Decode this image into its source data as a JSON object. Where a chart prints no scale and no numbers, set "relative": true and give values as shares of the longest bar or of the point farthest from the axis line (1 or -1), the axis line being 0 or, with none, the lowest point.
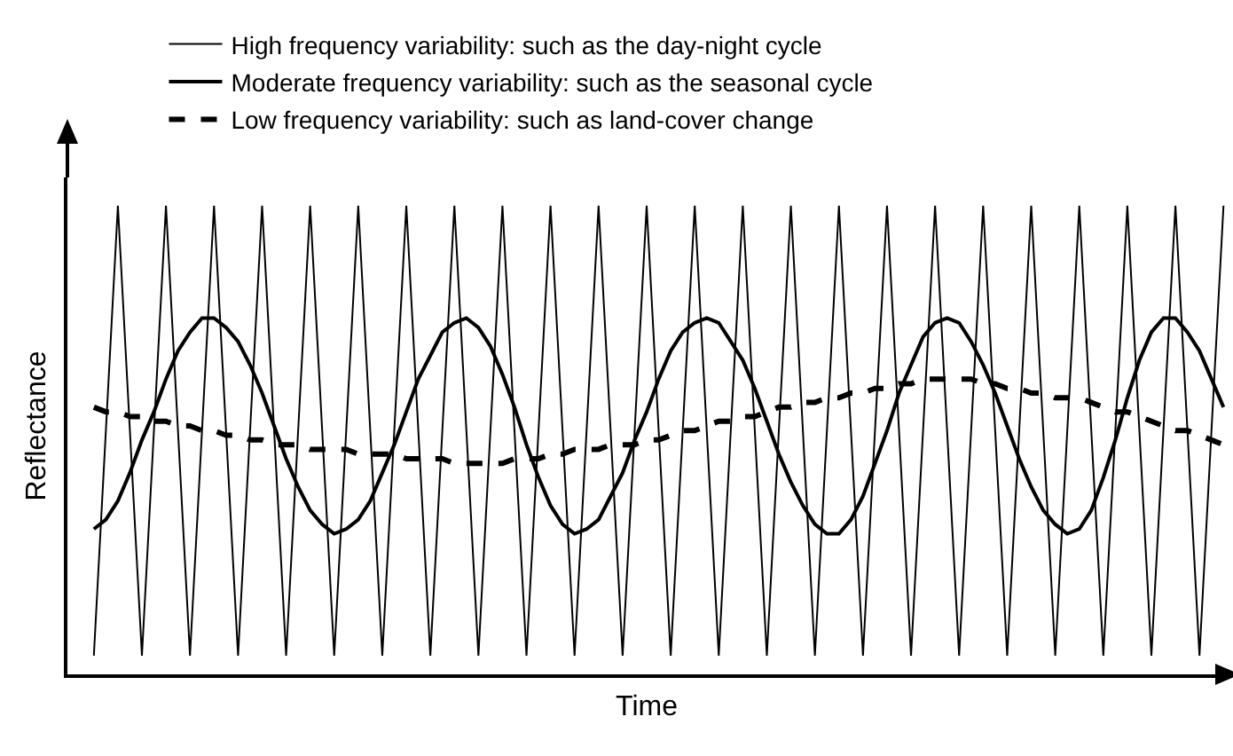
{
  "chart_data": {
    "type": "line",
    "relative": true,
    "xlabel": "Time",
    "ylabel": "Reflectance",
    "legend": "top",
    "categories": [
      null,
      null,
      null,
      null,
      null,
      null,
      null,
      null,
      null,
      null,
      null,
      null,
      null,
      null,
      null,
      null,
      null,
      null,
      null,
      null,
      null,
      null,
      null,
      null,
      null,
      null,
      null,
      null,
      null,
      null,
      null,
      null,
      null,
      null,
      null,
      null,
      null,
      null,
      null,
      null,
      null,
      null,
      null,
      null,
      null,
      null,
      null,
      null,
      null,
      null,
      null,
      null,
      null,
      null,
      null,
      null,
      null,
      null,
      null,
      null,
      null,
      null,
      null,
      null,
      null,
      null,
      null,
      null,
      null,
      null,
      null,
      null,
      null,
      null,
      null,
      null,
      null,
      null,
      null,
      null,
      null,
      null,
      null,
      null,
      null,
      null,
      null,
      null,
      null,
      null,
      null,
      null,
      null,
      null,
      null
    ],
    "series": [
      {
        "name": "High frequency variability: such as the day-night cycle",
        "color": "#000000",
        "line_style": "solid",
        "values": [
          0.04,
          0.52,
          1,
          0.52,
          0.04,
          0.52,
          1,
          0.52,
          0.04,
          0.52,
          1,
          0.52,
          0.04,
          0.52,
          1,
          0.52,
          0.04,
          0.52,
          1,
          0.52,
          0.04,
          0.52,
          1,
          0.52,
          0.04,
          0.52,
          1,
          0.52,
          0.04,
          0.52,
          1,
          0.52,
          0.04,
          0.52,
          1,
          0.52,
          0.04,
          0.52,
          1,
          0.52,
          0.04,
          0.52,
          1,
          0.52,
          0.04,
          0.52,
          1,
          0.52,
          0.04,
          0.52,
          1,
          0.52,
          0.04,
          0.52,
          1,
          0.52,
          0.04,
          0.52,
          1,
          0.52,
          0.04,
          0.52,
          1,
          0.52,
          0.04,
          0.52,
          1,
          0.52,
          0.04,
          0.52,
          1,
          0.52,
          0.04,
          0.52,
          1,
          0.52,
          0.04,
          0.52,
          1,
          0.52,
          0.04,
          0.52,
          1,
          0.52,
          0.04,
          0.52,
          1,
          0.52,
          0.04,
          0.52,
          1,
          0.52,
          0.04,
          0.52,
          1
        ]
      },
      {
        "name": "Moderate frequency variability: such as the seasonal cycle",
        "color": "#000000",
        "line_style": "solid",
        "values": [
          0.31,
          0.33,
          0.37,
          0.43,
          0.5,
          0.56,
          0.63,
          0.69,
          0.73,
          0.76,
          0.76,
          0.74,
          0.71,
          0.66,
          0.6,
          0.53,
          0.46,
          0.4,
          0.35,
          0.32,
          0.3,
          0.31,
          0.33,
          0.37,
          0.43,
          0.49,
          0.56,
          0.63,
          0.68,
          0.73,
          0.75,
          0.76,
          0.74,
          0.7,
          0.64,
          0.57,
          0.49,
          0.42,
          0.36,
          0.32,
          0.3,
          0.31,
          0.33,
          0.38,
          0.43,
          0.5,
          0.56,
          0.63,
          0.69,
          0.73,
          0.75,
          0.76,
          0.75,
          0.71,
          0.67,
          0.61,
          0.54,
          0.47,
          0.41,
          0.36,
          0.32,
          0.3,
          0.3,
          0.33,
          0.38,
          0.45,
          0.52,
          0.6,
          0.66,
          0.72,
          0.75,
          0.76,
          0.75,
          0.71,
          0.66,
          0.6,
          0.53,
          0.46,
          0.4,
          0.35,
          0.32,
          0.3,
          0.31,
          0.35,
          0.42,
          0.5,
          0.59,
          0.67,
          0.73,
          0.76,
          0.76,
          0.73,
          0.69,
          0.63,
          0.57
        ]
      },
      {
        "name": "Low frequency variability: such as land-cover change",
        "color": "#000000",
        "line_style": "dashed",
        "values": [
          0.57,
          0.56,
          0.56,
          0.55,
          0.55,
          0.54,
          0.54,
          0.53,
          0.53,
          0.52,
          0.52,
          0.51,
          0.51,
          0.5,
          0.5,
          0.49,
          0.49,
          0.49,
          0.48,
          0.48,
          0.48,
          0.48,
          0.47,
          0.47,
          0.47,
          0.47,
          0.46,
          0.46,
          0.46,
          0.46,
          0.45,
          0.45,
          0.45,
          0.45,
          0.45,
          0.46,
          0.46,
          0.46,
          0.47,
          0.47,
          0.48,
          0.48,
          0.48,
          0.49,
          0.49,
          0.49,
          0.5,
          0.5,
          0.51,
          0.52,
          0.52,
          0.53,
          0.54,
          0.54,
          0.55,
          0.55,
          0.56,
          0.57,
          0.57,
          0.58,
          0.58,
          0.59,
          0.59,
          0.6,
          0.6,
          0.61,
          0.61,
          0.62,
          0.62,
          0.63,
          0.63,
          0.63,
          0.63,
          0.63,
          0.62,
          0.62,
          0.61,
          0.61,
          0.6,
          0.6,
          0.59,
          0.59,
          0.59,
          0.58,
          0.57,
          0.56,
          0.56,
          0.55,
          0.54,
          0.53,
          0.52,
          0.52,
          0.51,
          0.5,
          0.49
        ]
      }
    ]
  }
}
